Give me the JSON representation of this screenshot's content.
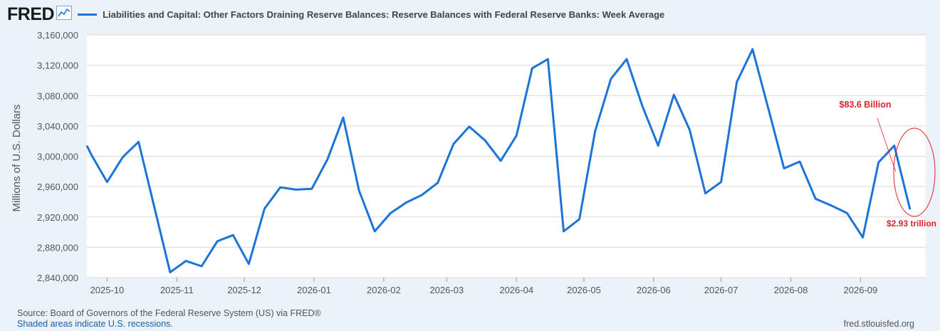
{
  "header": {
    "logo_text": "FRED",
    "logo_icon": "trend-chart-icon",
    "series_title": "Liabilities and Capital: Other Factors Draining Reserve Balances: Reserve Balances with Federal Reserve Banks: Week Average"
  },
  "footer": {
    "source": "Source: Board of Governors of the Federal Reserve System (US) via FRED®",
    "recessions": "Shaded areas indicate U.S. recessions.",
    "site": "fred.stlouisfed.org"
  },
  "colors": {
    "series": "#1b74d8",
    "annotation": "#e0202c",
    "background": "#eaf2fa",
    "plot": "#ffffff"
  },
  "chart_data": {
    "type": "line",
    "ylabel": "Millions of U.S. Dollars",
    "ylim": [
      2840000,
      3160000
    ],
    "yticks": [
      2840000,
      2880000,
      2920000,
      2960000,
      3000000,
      3040000,
      3080000,
      3120000,
      3160000
    ],
    "ytick_labels": [
      "2,840,000",
      "2,880,000",
      "2,920,000",
      "2,960,000",
      "3,000,000",
      "3,040,000",
      "3,080,000",
      "3,120,000",
      "3,160,000"
    ],
    "xlim": [
      "2025-09-22",
      "2026-09-30"
    ],
    "xticks": [
      "2025-10-01",
      "2025-11-01",
      "2025-12-01",
      "2026-01-01",
      "2026-02-01",
      "2026-03-01",
      "2026-04-01",
      "2026-05-01",
      "2026-06-01",
      "2026-07-01",
      "2026-08-01",
      "2026-09-01"
    ],
    "xtick_labels": [
      "2025-10",
      "2025-11",
      "2025-12",
      "2026-01",
      "2026-02",
      "2026-03",
      "2026-04",
      "2026-05",
      "2026-06",
      "2026-07",
      "2026-08",
      "2026-09"
    ],
    "grid": true,
    "series": [
      {
        "x": [
          "2025-09-22",
          "2025-09-24",
          "2025-10-01",
          "2025-10-08",
          "2025-10-15",
          "2025-10-22",
          "2025-10-29",
          "2025-11-05",
          "2025-11-12",
          "2025-11-19",
          "2025-11-26",
          "2025-12-03",
          "2025-12-10",
          "2025-12-17",
          "2025-12-24",
          "2025-12-31",
          "2026-01-07",
          "2026-01-14",
          "2026-01-21",
          "2026-01-28",
          "2026-02-04",
          "2026-02-11",
          "2026-02-18",
          "2026-02-25",
          "2026-03-04",
          "2026-03-11",
          "2026-03-18",
          "2026-03-25",
          "2026-04-01",
          "2026-04-08",
          "2026-04-15",
          "2026-04-22",
          "2026-04-29",
          "2026-05-06",
          "2026-05-13",
          "2026-05-20",
          "2026-05-27",
          "2026-06-03",
          "2026-06-10",
          "2026-06-17",
          "2026-06-24",
          "2026-07-01",
          "2026-07-08",
          "2026-07-15",
          "2026-07-22",
          "2026-07-29",
          "2026-08-05",
          "2026-08-12",
          "2026-08-19",
          "2026-08-26",
          "2026-09-02",
          "2026-09-09",
          "2026-09-16",
          "2026-09-23"
        ],
        "values": [
          3014000,
          3002000,
          2966000,
          2999000,
          3019000,
          2933000,
          2847000,
          2862000,
          2855000,
          2888000,
          2896000,
          2858000,
          2931000,
          2959000,
          2956000,
          2957000,
          2996000,
          3051000,
          2955000,
          2901000,
          2925000,
          2939000,
          2949000,
          2965000,
          3016000,
          3039000,
          3021000,
          2994000,
          3027000,
          3116000,
          3128000,
          2901000,
          2917000,
          3033000,
          3102000,
          3128000,
          3066000,
          3014000,
          3081000,
          3035000,
          2951000,
          2966000,
          3098000,
          3141000,
          3063000,
          2984000,
          2993000,
          2944000,
          2935000,
          2925000,
          2893000,
          2992000,
          3014000,
          2930000
        ]
      }
    ],
    "annotations": [
      {
        "text": "$83.6 Billion",
        "points_to": [
          "2026-09-09",
          2994000
        ]
      },
      {
        "text": "$2.93 trillion",
        "near": [
          "2026-09-23",
          2930000
        ]
      }
    ]
  }
}
